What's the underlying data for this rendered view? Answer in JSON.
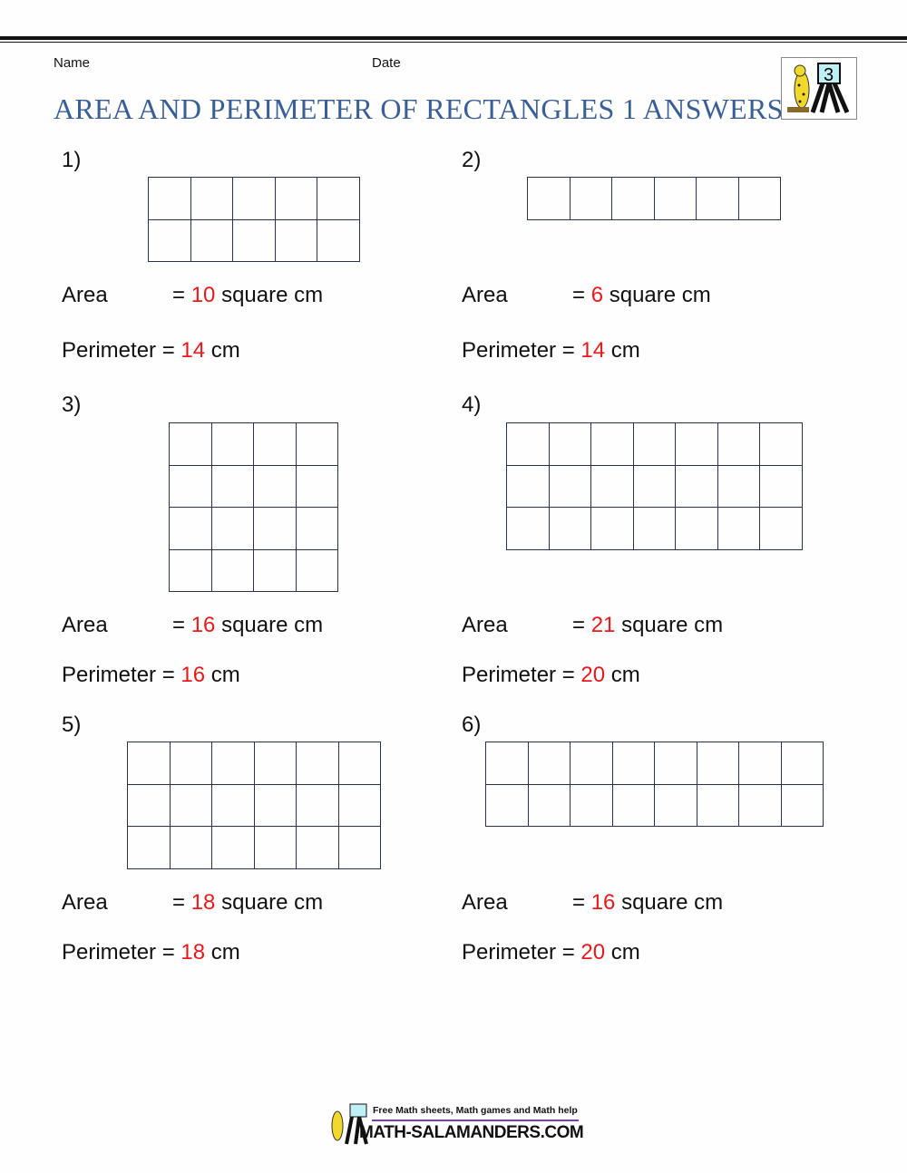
{
  "header": {
    "name_label": "Name",
    "date_label": "Date",
    "title": "AREA AND PERIMETER OF RECTANGLES 1 ANSWERS",
    "logo_text": "3"
  },
  "labels": {
    "area": "Area",
    "perimeter": "Perimeter",
    "eq": "=",
    "area_unit": "square cm",
    "perim_unit": "cm"
  },
  "problems": [
    {
      "number": "1)",
      "cols": 5,
      "rows": 2,
      "area": "10",
      "perimeter": "14"
    },
    {
      "number": "2)",
      "cols": 6,
      "rows": 1,
      "area": "6",
      "perimeter": "14"
    },
    {
      "number": "3)",
      "cols": 4,
      "rows": 4,
      "area": "16",
      "perimeter": "16"
    },
    {
      "number": "4)",
      "cols": 7,
      "rows": 3,
      "area": "21",
      "perimeter": "20"
    },
    {
      "number": "5)",
      "cols": 6,
      "rows": 3,
      "area": "18",
      "perimeter": "18"
    },
    {
      "number": "6)",
      "cols": 8,
      "rows": 2,
      "area": "16",
      "perimeter": "20"
    }
  ],
  "footer": {
    "tagline": "Free Math sheets, Math games and Math help",
    "site": "MATH-SALAMANDERS.COM"
  },
  "colors": {
    "title": "#3a5f96",
    "answer": "#e8191c"
  }
}
